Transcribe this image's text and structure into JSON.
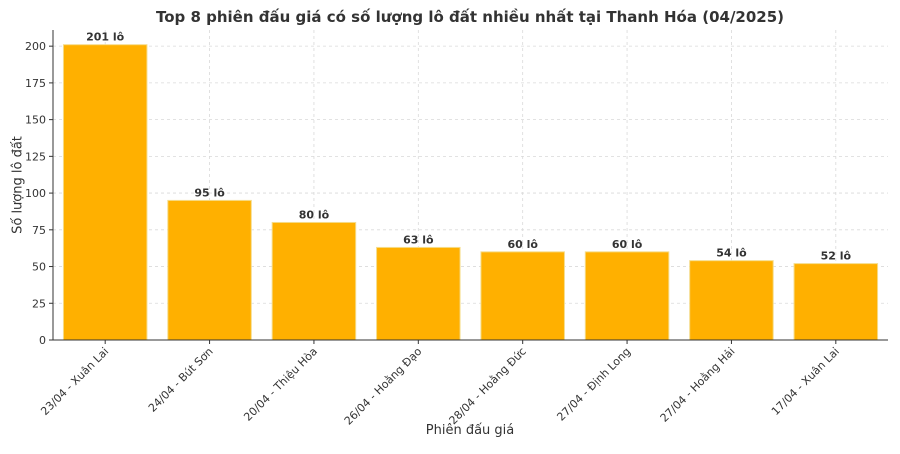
{
  "chart_data": {
    "type": "bar",
    "title": "Top 8 phiên đấu giá có số lượng lô đất nhiều nhất tại Thanh Hóa (04/2025)",
    "xlabel": "Phiên đấu giá",
    "ylabel": "Số lượng lô đất",
    "categories": [
      "23/04 - Xuân Lai",
      "24/04 - Bút Sơn",
      "20/04 - Thiệu Hòa",
      "26/04 - Hoằng Đạo",
      "28/04 - Hoằng Đức",
      "27/04 - Định Long",
      "27/04 - Hoằng Hải",
      "17/04 - Xuân Lai"
    ],
    "values": [
      201,
      95,
      80,
      63,
      60,
      60,
      54,
      52
    ],
    "data_labels": [
      "201 lô",
      "95 lô",
      "80 lô",
      "63 lô",
      "60 lô",
      "60 lô",
      "54 lô",
      "52 lô"
    ],
    "y_ticks": [
      0,
      25,
      50,
      75,
      100,
      125,
      150,
      175,
      200
    ],
    "ylim": [
      0,
      211
    ],
    "grid": true,
    "bar_color": "#FFB000",
    "bar_edge_color": "#F5DC8A"
  }
}
